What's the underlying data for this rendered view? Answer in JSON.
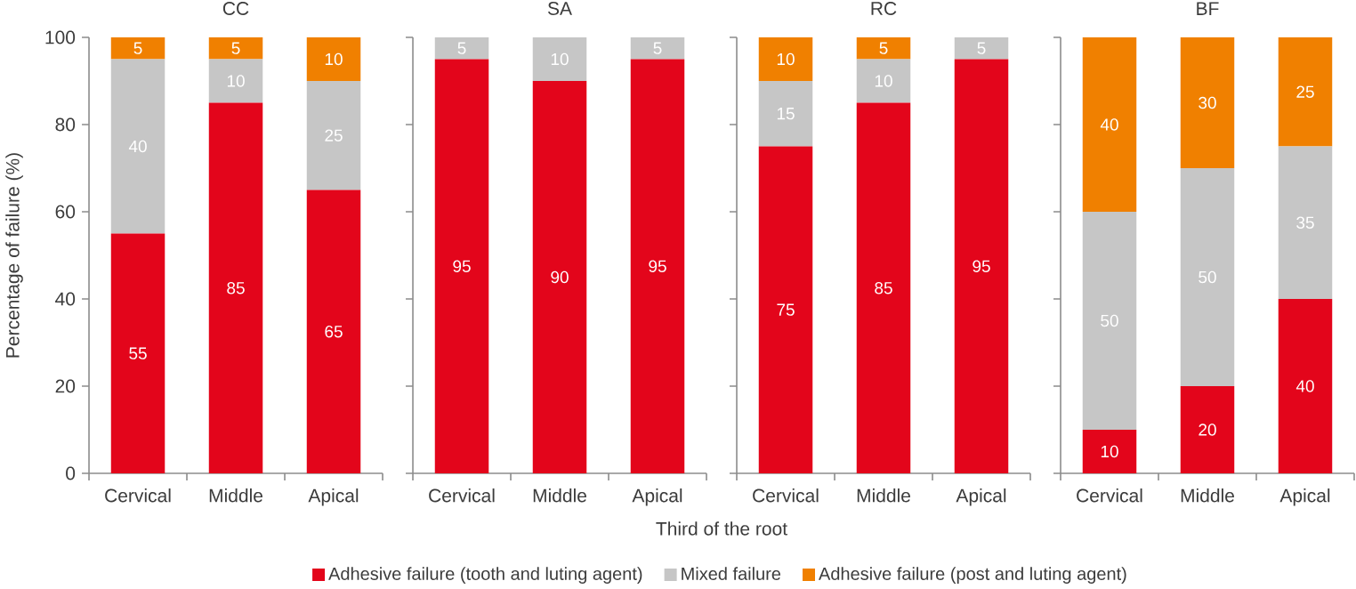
{
  "chart_data": [
    {
      "type": "bar",
      "stacked": true,
      "title": "CC",
      "ylabel": "Percentage of failure (%)",
      "categories": [
        "Cervical",
        "Middle",
        "Apical"
      ],
      "series": [
        {
          "name": "Adhesive failure (tooth and luting agent)",
          "color": "#e3051b",
          "values": [
            55,
            85,
            65
          ]
        },
        {
          "name": "Mixed failure",
          "color": "#c6c6c6",
          "values": [
            40,
            10,
            25
          ]
        },
        {
          "name": "Adhesive failure (post and luting agent)",
          "color": "#f08000",
          "values": [
            5,
            5,
            10
          ]
        }
      ],
      "ylim": [
        0,
        100
      ],
      "yticks": [
        0,
        20,
        40,
        60,
        80,
        100
      ],
      "data_labels": true,
      "legend": "bottom"
    },
    {
      "type": "bar",
      "stacked": true,
      "title": "SA",
      "xlabel": "Third of the root",
      "categories": [
        "Cervical",
        "Middle",
        "Apical"
      ],
      "series": [
        {
          "color": "#e3051b",
          "values": [
            95,
            90,
            95
          ]
        },
        {
          "color": "#c6c6c6",
          "values": [
            5,
            10,
            5
          ]
        }
      ],
      "ylim": [
        0,
        100
      ],
      "yticks": [
        0,
        20,
        40,
        60,
        80,
        100
      ],
      "data_labels": true,
      "tick_labels": "x"
    },
    {
      "type": "bar",
      "stacked": true,
      "title": "RC",
      "categories": [
        "Cervical",
        "Middle",
        "Apical"
      ],
      "series": [
        {
          "color": "#e3051b",
          "values": [
            75,
            85,
            95
          ]
        },
        {
          "color": "#c6c6c6",
          "values": [
            15,
            10,
            5
          ]
        },
        {
          "color": "#f08000",
          "values": [
            10,
            5,
            null
          ]
        }
      ],
      "ylim": [
        0,
        100
      ],
      "yticks": [
        0,
        20,
        40,
        60,
        80,
        100
      ],
      "data_labels": true,
      "tick_labels": "x"
    },
    {
      "type": "bar",
      "stacked": true,
      "title": "BF",
      "categories": [
        "Cervical",
        "Middle",
        "Apical"
      ],
      "series": [
        {
          "color": "#e3051b",
          "values": [
            10,
            20,
            40
          ]
        },
        {
          "color": "#c6c6c6",
          "values": [
            50,
            50,
            35
          ]
        },
        {
          "color": "#f08000",
          "values": [
            40,
            30,
            25
          ]
        }
      ],
      "ylim": [
        0,
        100
      ],
      "yticks": [
        0,
        20,
        40,
        60,
        80,
        100
      ],
      "data_labels": true,
      "tick_labels": "x"
    }
  ]
}
